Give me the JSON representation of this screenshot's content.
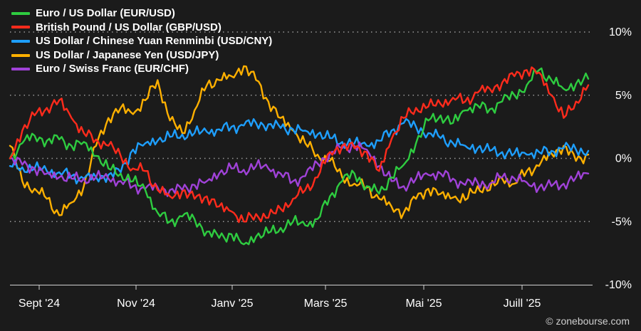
{
  "chart_data": {
    "type": "line",
    "x_ticks": [
      "Sept '24",
      "Nov '24",
      "Janv '25",
      "Mars '25",
      "Mai '25",
      "Juill '25"
    ],
    "y_ticks": [
      "10%",
      "5%",
      "0%",
      "-5%",
      "-10%"
    ],
    "y_tick_values": [
      10,
      5,
      0,
      -5,
      -10
    ],
    "ylim": [
      -10,
      10
    ],
    "grid": "dotted horizontal lines at 10%, 5%, 0% and -5%",
    "y_axis_position": "right",
    "legend_position": "top-left",
    "series": [
      {
        "name": "Euro / US Dollar (EUR/USD)",
        "color": "#2ecc40",
        "values": [
          0,
          1.2,
          1.8,
          1.4,
          1.5,
          1.0,
          1.3,
          0.2,
          -0.8,
          -1.2,
          -1.8,
          -2.5,
          -4.3,
          -5.0,
          -4.6,
          -4.8,
          -5.8,
          -6.3,
          -6.0,
          -6.8,
          -6.2,
          -5.9,
          -5.5,
          -5.0,
          -5.3,
          -4.8,
          -3.0,
          -1.8,
          -1.2,
          -2.2,
          -2.8,
          -1.5,
          -0.5,
          1.2,
          3.0,
          3.4,
          2.8,
          3.8,
          4.2,
          3.9,
          4.5,
          5.0,
          5.8,
          7.0,
          6.2,
          5.5,
          5.9,
          6.3
        ]
      },
      {
        "name": "British Pound / US Dollar (GBP/USD)",
        "color": "#ff2b1c",
        "values": [
          0,
          2.2,
          3.4,
          4.0,
          4.6,
          3.2,
          2.0,
          1.5,
          1.0,
          0.2,
          -0.8,
          -1.0,
          -2.5,
          -3.0,
          -2.6,
          -3.2,
          -3.0,
          -3.8,
          -4.2,
          -5.0,
          -4.4,
          -4.7,
          -4.0,
          -3.2,
          -2.5,
          -1.5,
          0.5,
          1.0,
          0.8,
          0.5,
          -1.0,
          1.5,
          3.2,
          4.0,
          4.1,
          4.3,
          4.8,
          4.5,
          5.2,
          5.5,
          6.0,
          6.5,
          7.0,
          6.8,
          5.0,
          3.2,
          4.5,
          5.8
        ]
      },
      {
        "name": "US Dollar / Chinese Yuan Renminbi (USD/CNY)",
        "color": "#1e9fff",
        "values": [
          -0.6,
          -0.7,
          -0.8,
          -1.0,
          -1.1,
          -1.4,
          -1.6,
          -1.5,
          -1.3,
          -1.1,
          0.7,
          1.2,
          1.4,
          1.7,
          1.9,
          2.0,
          2.1,
          2.3,
          2.5,
          2.6,
          2.8,
          2.7,
          2.4,
          2.3,
          2.2,
          1.9,
          1.6,
          1.3,
          1.2,
          1.0,
          1.4,
          2.2,
          2.8,
          2.5,
          2.0,
          1.6,
          1.2,
          1.0,
          0.8,
          0.6,
          0.5,
          0.4,
          0.3,
          0.5,
          0.6,
          0.8,
          0.7,
          0.6
        ]
      },
      {
        "name": "US Dollar / Japanese Yen (USD/JPY)",
        "color": "#ffb000",
        "values": [
          1.0,
          -1.8,
          -2.4,
          -3.2,
          -4.5,
          -3.5,
          -2.2,
          1.0,
          3.2,
          4.0,
          3.5,
          4.6,
          6.2,
          3.0,
          2.0,
          3.8,
          5.8,
          6.2,
          6.5,
          7.3,
          6.2,
          4.5,
          3.2,
          2.2,
          1.2,
          0.3,
          -0.2,
          -1.5,
          -2.0,
          -2.3,
          -3.2,
          -3.8,
          -4.3,
          -3.2,
          -2.4,
          -2.8,
          -3.1,
          -3.3,
          -2.2,
          -2.5,
          -1.6,
          -2.0,
          -1.0,
          -0.6,
          0.4,
          1.0,
          -0.2,
          0.3
        ]
      },
      {
        "name": "Euro / Swiss Franc (EUR/CHF)",
        "color": "#a042d8",
        "values": [
          0,
          -0.5,
          -0.8,
          -1.2,
          -1.5,
          -1.6,
          -1.6,
          -1.5,
          -1.6,
          -1.8,
          -2.2,
          -2.4,
          -2.3,
          -2.5,
          -2.5,
          -2.1,
          -1.8,
          -1.2,
          -0.8,
          -0.9,
          -0.6,
          -0.8,
          -1.2,
          -1.8,
          -1.4,
          -0.4,
          0.4,
          0.8,
          1.0,
          0.7,
          -0.6,
          -1.8,
          -2.2,
          -1.6,
          -1.3,
          -1.2,
          -1.6,
          -2.1,
          -1.9,
          -2.0,
          -1.5,
          -1.6,
          -1.9,
          -2.3,
          -2.2,
          -2.0,
          -1.5,
          -1.2
        ]
      }
    ]
  },
  "footer": {
    "copyright": "© zonebourse.com"
  }
}
